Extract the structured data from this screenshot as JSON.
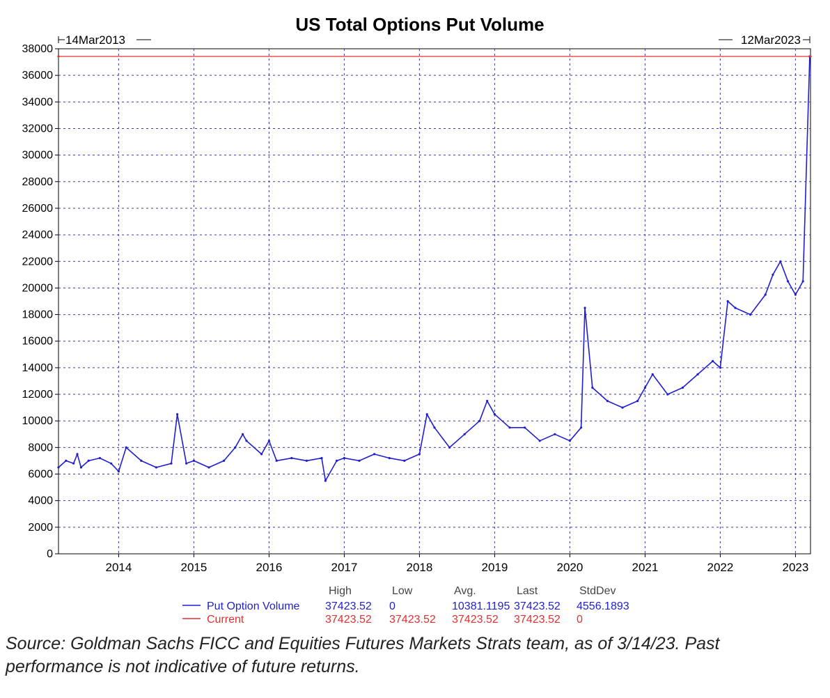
{
  "chart_data": {
    "type": "line",
    "title": "US Total Options Put Volume",
    "range_start_label": "14Mar2013",
    "range_end_label": "12Mar2023",
    "x_start": 2013.2,
    "x_end": 2023.2,
    "ylim": [
      0,
      38000
    ],
    "y_ticks": [
      0,
      2000,
      4000,
      6000,
      8000,
      10000,
      12000,
      14000,
      16000,
      18000,
      20000,
      22000,
      24000,
      26000,
      28000,
      30000,
      32000,
      34000,
      36000,
      38000
    ],
    "x_ticks": [
      {
        "x": 2014,
        "label": "2014"
      },
      {
        "x": 2015,
        "label": "2015"
      },
      {
        "x": 2016,
        "label": "2016"
      },
      {
        "x": 2017,
        "label": "2017"
      },
      {
        "x": 2018,
        "label": "2018"
      },
      {
        "x": 2019,
        "label": "2019"
      },
      {
        "x": 2020,
        "label": "2020"
      },
      {
        "x": 2021,
        "label": "2021"
      },
      {
        "x": 2022,
        "label": "2022"
      },
      {
        "x": 2023,
        "label": "2023"
      }
    ],
    "grid": true,
    "series": [
      {
        "name": "Put Option Volume",
        "color": "#1f1fd0",
        "x": [
          2013.2,
          2013.3,
          2013.4,
          2013.45,
          2013.5,
          2013.6,
          2013.75,
          2013.9,
          2014.0,
          2014.1,
          2014.3,
          2014.5,
          2014.7,
          2014.78,
          2014.9,
          2015.0,
          2015.2,
          2015.4,
          2015.55,
          2015.65,
          2015.7,
          2015.9,
          2016.0,
          2016.1,
          2016.3,
          2016.5,
          2016.7,
          2016.75,
          2016.9,
          2017.0,
          2017.2,
          2017.4,
          2017.6,
          2017.8,
          2018.0,
          2018.1,
          2018.2,
          2018.4,
          2018.6,
          2018.8,
          2018.9,
          2019.0,
          2019.2,
          2019.4,
          2019.6,
          2019.8,
          2020.0,
          2020.15,
          2020.2,
          2020.3,
          2020.5,
          2020.7,
          2020.9,
          2021.0,
          2021.1,
          2021.3,
          2021.5,
          2021.7,
          2021.9,
          2022.0,
          2022.1,
          2022.2,
          2022.4,
          2022.6,
          2022.7,
          2022.8,
          2022.9,
          2023.0,
          2023.1,
          2023.19
        ],
        "values": [
          6500,
          7000,
          6800,
          7500,
          6500,
          7000,
          7200,
          6800,
          6200,
          8000,
          7000,
          6500,
          6800,
          10500,
          6800,
          7000,
          6500,
          7000,
          8000,
          9000,
          8500,
          7500,
          8500,
          7000,
          7200,
          7000,
          7200,
          5500,
          7000,
          7200,
          7000,
          7500,
          7200,
          7000,
          7500,
          10500,
          9500,
          8000,
          9000,
          10000,
          11500,
          10500,
          9500,
          9500,
          8500,
          9000,
          8500,
          9500,
          18500,
          12500,
          11500,
          11000,
          11500,
          12500,
          13500,
          12000,
          12500,
          13500,
          14500,
          14000,
          19000,
          18500,
          18000,
          19500,
          21000,
          22000,
          20500,
          19500,
          20500,
          37423.52
        ]
      },
      {
        "name": "Current",
        "color": "#e03030",
        "x": [
          2013.2,
          2023.2
        ],
        "values": [
          37423.52,
          37423.52
        ]
      }
    ],
    "stats": {
      "headers": [
        "High",
        "Low",
        "Avg.",
        "Last",
        "StdDev"
      ],
      "rows": [
        {
          "name": "Put Option Volume",
          "values": [
            "37423.52",
            "0",
            "10381.1195",
            "37423.52",
            "4556.1893"
          ]
        },
        {
          "name": "Current",
          "values": [
            "37423.52",
            "37423.52",
            "37423.52",
            "37423.52",
            "0"
          ]
        }
      ]
    }
  },
  "footnote": "Source: Goldman Sachs FICC and Equities Futures Markets Strats team, as of 3/14/23. Past performance is not indicative of future returns."
}
